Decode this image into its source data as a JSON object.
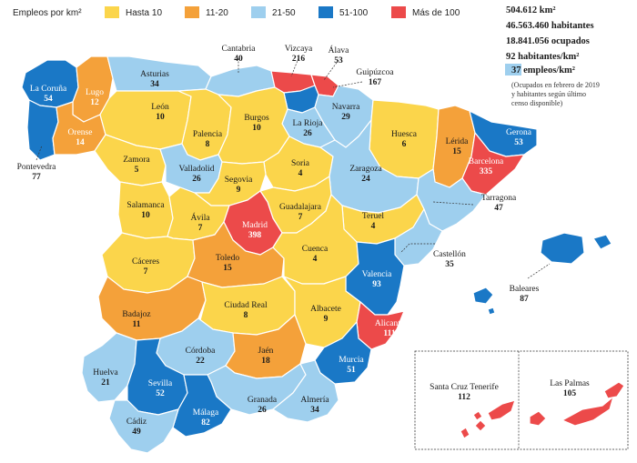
{
  "legend": {
    "title": "Empleos por km²",
    "bins": [
      {
        "key": "b1",
        "label": "Hasta 10",
        "color": "#fbd54b"
      },
      {
        "key": "b2",
        "label": "11-20",
        "color": "#f4a13a"
      },
      {
        "key": "b3",
        "label": "21-50",
        "color": "#9ecfee"
      },
      {
        "key": "b4",
        "label": "51-100",
        "color": "#1a78c6"
      },
      {
        "key": "b5",
        "label": "Más de 100",
        "color": "#ec4a4a"
      }
    ]
  },
  "stats": {
    "area": "504.612 km²",
    "population": "46.563.460 habitantes",
    "employed": "18.841.056 ocupados",
    "density": "92 habitantes/km²",
    "jobs_density": "37 empleos/km²",
    "note_line1": "(Ocupados en febrero de 2019",
    "note_line2": "y habitantes según último",
    "note_line3": "censo disponible)"
  },
  "provinces": [
    {
      "id": "la-coruna",
      "name": "La Coruña",
      "value": "54",
      "bin": "b4"
    },
    {
      "id": "lugo",
      "name": "Lugo",
      "value": "12",
      "bin": "b2"
    },
    {
      "id": "orense",
      "name": "Orense",
      "value": "14",
      "bin": "b2"
    },
    {
      "id": "pontevedra",
      "name": "Pontevedra",
      "value": "77",
      "bin": "b4"
    },
    {
      "id": "asturias",
      "name": "Asturias",
      "value": "34",
      "bin": "b3"
    },
    {
      "id": "cantabria",
      "name": "Cantabria",
      "value": "40",
      "bin": "b3"
    },
    {
      "id": "vizcaya",
      "name": "Vizcaya",
      "value": "216",
      "bin": "b5"
    },
    {
      "id": "alava",
      "name": "Álava",
      "value": "53",
      "bin": "b4"
    },
    {
      "id": "guipuzcoa",
      "name": "Guipúzcoa",
      "value": "167",
      "bin": "b5"
    },
    {
      "id": "leon",
      "name": "León",
      "value": "10",
      "bin": "b1"
    },
    {
      "id": "palencia",
      "name": "Palencia",
      "value": "8",
      "bin": "b1"
    },
    {
      "id": "burgos",
      "name": "Burgos",
      "value": "10",
      "bin": "b1"
    },
    {
      "id": "la-rioja",
      "name": "La Rioja",
      "value": "26",
      "bin": "b3"
    },
    {
      "id": "navarra",
      "name": "Navarra",
      "value": "29",
      "bin": "b3"
    },
    {
      "id": "huesca",
      "name": "Huesca",
      "value": "6",
      "bin": "b1"
    },
    {
      "id": "lerida",
      "name": "Lérida",
      "value": "15",
      "bin": "b2"
    },
    {
      "id": "gerona",
      "name": "Gerona",
      "value": "53",
      "bin": "b4"
    },
    {
      "id": "barcelona",
      "name": "Barcelona",
      "value": "335",
      "bin": "b5"
    },
    {
      "id": "zamora",
      "name": "Zamora",
      "value": "5",
      "bin": "b1"
    },
    {
      "id": "valladolid",
      "name": "Valladolid",
      "value": "26",
      "bin": "b3"
    },
    {
      "id": "soria",
      "name": "Soria",
      "value": "4",
      "bin": "b1"
    },
    {
      "id": "zaragoza",
      "name": "Zaragoza",
      "value": "24",
      "bin": "b3"
    },
    {
      "id": "tarragona",
      "name": "Tarragona",
      "value": "47",
      "bin": "b3"
    },
    {
      "id": "salamanca",
      "name": "Salamanca",
      "value": "10",
      "bin": "b1"
    },
    {
      "id": "segovia",
      "name": "Segovia",
      "value": "9",
      "bin": "b1"
    },
    {
      "id": "avila",
      "name": "Ávila",
      "value": "7",
      "bin": "b1"
    },
    {
      "id": "madrid",
      "name": "Madrid",
      "value": "398",
      "bin": "b5"
    },
    {
      "id": "guadalajara",
      "name": "Guadalajara",
      "value": "7",
      "bin": "b1"
    },
    {
      "id": "teruel",
      "name": "Teruel",
      "value": "4",
      "bin": "b1"
    },
    {
      "id": "castellon",
      "name": "Castellón",
      "value": "35",
      "bin": "b3"
    },
    {
      "id": "caceres",
      "name": "Cáceres",
      "value": "7",
      "bin": "b1"
    },
    {
      "id": "toledo",
      "name": "Toledo",
      "value": "15",
      "bin": "b2"
    },
    {
      "id": "cuenca",
      "name": "Cuenca",
      "value": "4",
      "bin": "b1"
    },
    {
      "id": "valencia",
      "name": "Valencia",
      "value": "93",
      "bin": "b4"
    },
    {
      "id": "baleares",
      "name": "Baleares",
      "value": "87",
      "bin": "b4"
    },
    {
      "id": "badajoz",
      "name": "Badajoz",
      "value": "11",
      "bin": "b2"
    },
    {
      "id": "ciudad-real",
      "name": "Ciudad Real",
      "value": "8",
      "bin": "b1"
    },
    {
      "id": "albacete",
      "name": "Albacete",
      "value": "9",
      "bin": "b1"
    },
    {
      "id": "alicante",
      "name": "Alicante",
      "value": "111",
      "bin": "b5"
    },
    {
      "id": "cordoba",
      "name": "Córdoba",
      "value": "22",
      "bin": "b3"
    },
    {
      "id": "jaen",
      "name": "Jaén",
      "value": "18",
      "bin": "b2"
    },
    {
      "id": "murcia",
      "name": "Murcia",
      "value": "51",
      "bin": "b4"
    },
    {
      "id": "huelva",
      "name": "Huelva",
      "value": "21",
      "bin": "b3"
    },
    {
      "id": "sevilla",
      "name": "Sevilla",
      "value": "52",
      "bin": "b4"
    },
    {
      "id": "granada",
      "name": "Granada",
      "value": "26",
      "bin": "b3"
    },
    {
      "id": "almeria",
      "name": "Almería",
      "value": "34",
      "bin": "b3"
    },
    {
      "id": "malaga",
      "name": "Málaga",
      "value": "82",
      "bin": "b4"
    },
    {
      "id": "cadiz",
      "name": "Cádiz",
      "value": "49",
      "bin": "b3"
    },
    {
      "id": "santa-cruz",
      "name": "Santa Cruz Tenerife",
      "value": "112",
      "bin": "b5"
    },
    {
      "id": "las-palmas",
      "name": "Las Palmas",
      "value": "105",
      "bin": "b5"
    }
  ]
}
